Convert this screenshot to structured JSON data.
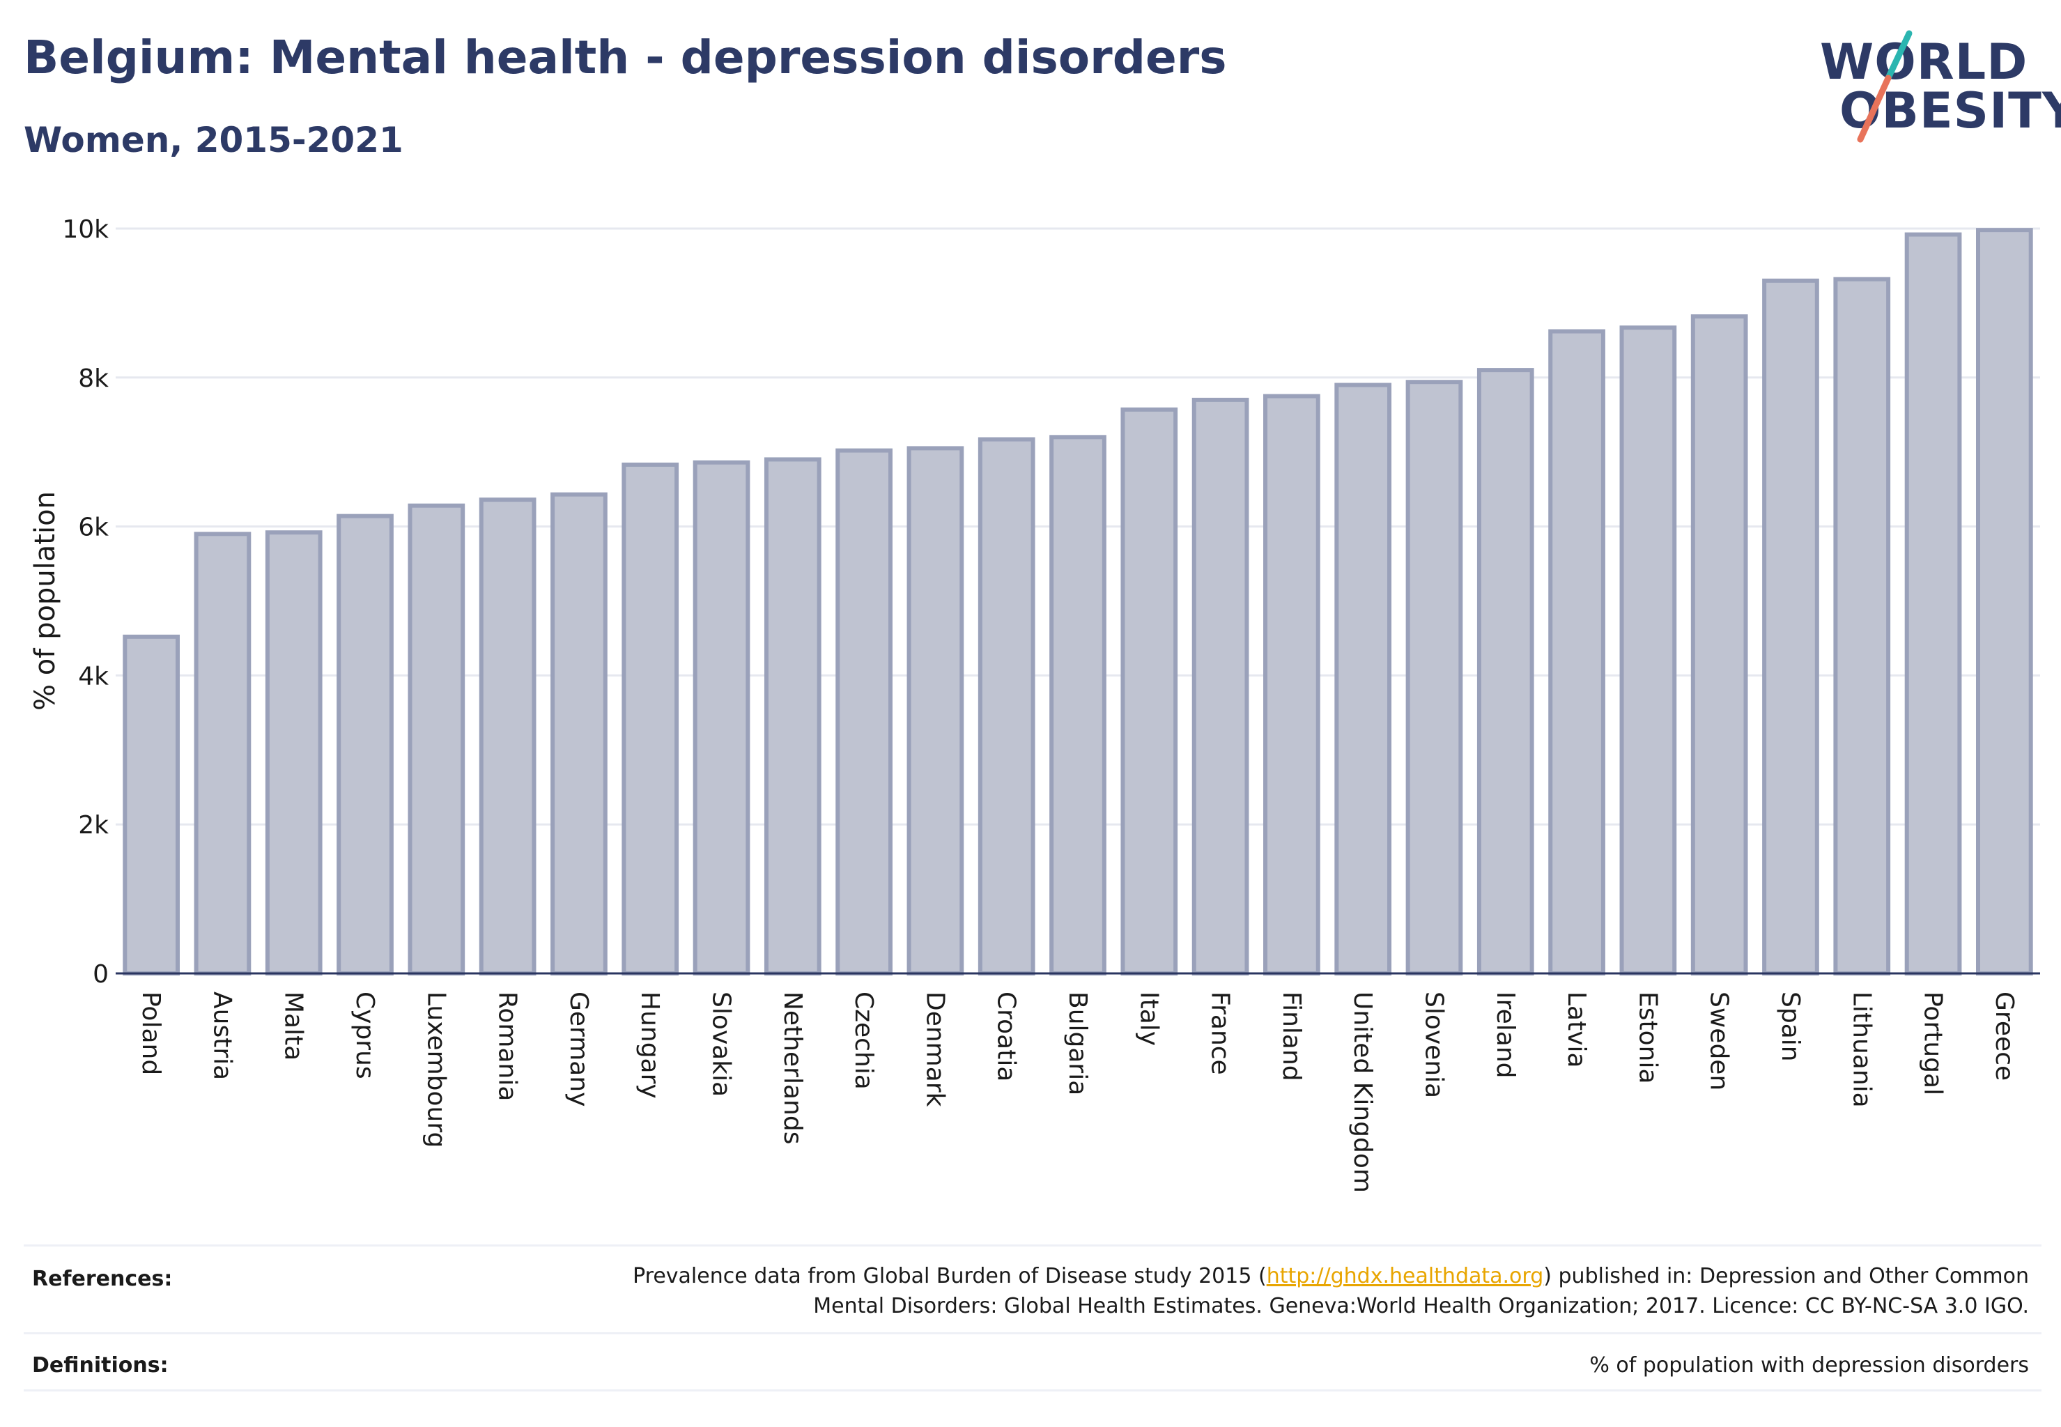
{
  "header": {
    "title": "Belgium: Mental health - depression disorders",
    "subtitle": "Women, 2015-2021"
  },
  "logo": {
    "line1": "WORLD",
    "line2": "OBESITY",
    "accent_teal": "#2bb5b0",
    "accent_coral": "#e8735a"
  },
  "colors": {
    "bar_fill": "#bfc3d1",
    "bar_stroke": "#9aa1ba",
    "grid": "#e6e8ef",
    "axis": "#2a3560"
  },
  "chart_data": {
    "type": "bar",
    "title": "Belgium: Mental health - depression disorders",
    "subtitle": "Women, 2015-2021",
    "xlabel": "",
    "ylabel": "% of population",
    "ylim": [
      0,
      10000
    ],
    "yticks": [
      0,
      2000,
      4000,
      6000,
      8000,
      10000
    ],
    "ytick_labels": [
      "0",
      "2k",
      "4k",
      "6k",
      "8k",
      "10k"
    ],
    "grid": true,
    "categories": [
      "Poland",
      "Austria",
      "Malta",
      "Cyprus",
      "Luxembourg",
      "Romania",
      "Germany",
      "Hungary",
      "Slovakia",
      "Netherlands",
      "Czechia",
      "Denmark",
      "Croatia",
      "Bulgaria",
      "Italy",
      "France",
      "Finland",
      "United Kingdom",
      "Slovenia",
      "Ireland",
      "Latvia",
      "Estonia",
      "Sweden",
      "Spain",
      "Lithuania",
      "Portugal",
      "Greece"
    ],
    "values": [
      4520,
      5900,
      5920,
      6140,
      6280,
      6360,
      6430,
      6830,
      6860,
      6900,
      7020,
      7050,
      7170,
      7200,
      7570,
      7700,
      7750,
      7900,
      7940,
      8100,
      8620,
      8670,
      8820,
      9300,
      9320,
      9920,
      9980
    ]
  },
  "footer": {
    "references_label": "References:",
    "references_text_before": "Prevalence data from Global Burden of Disease study 2015 (",
    "references_link": "http://ghdx.healthdata.org",
    "references_text_after": ") published in: Depression and Other Common Mental Disorders: Global Health Estimates. Geneva:World Health Organization; 2017. Licence: CC BY-NC-SA 3.0 IGO.",
    "definitions_label": "Definitions:",
    "definitions_text": "% of population with depression disorders"
  }
}
